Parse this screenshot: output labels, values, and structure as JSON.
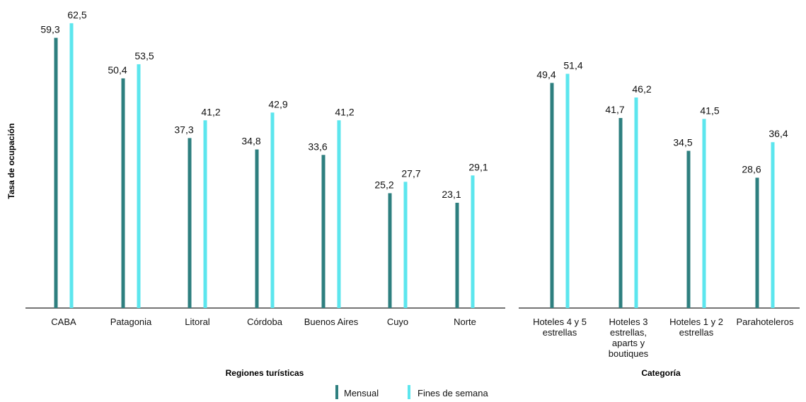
{
  "colors": {
    "mensual": "#2e7f7f",
    "fines": "#5ce6ee",
    "axis": "#222222"
  },
  "y_title": "Tasa de ocupación",
  "legend": {
    "mensual": "Mensual",
    "fines": "Fines de semana"
  },
  "chart_data": [
    {
      "type": "bar",
      "xlabel": "Regiones turísticas",
      "ylabel": "Tasa de ocupación",
      "ylim": [
        0,
        65
      ],
      "categories": [
        "CABA",
        "Patagonia",
        "Litoral",
        "Córdoba",
        "Buenos Aires",
        "Cuyo",
        "Norte"
      ],
      "series": [
        {
          "name": "Mensual",
          "values": [
            59.3,
            50.4,
            37.3,
            34.8,
            33.6,
            25.2,
            23.1
          ],
          "labels": [
            "59,3",
            "50,4",
            "37,3",
            "34,8",
            "33,6",
            "25,2",
            "23,1"
          ]
        },
        {
          "name": "Fines de semana",
          "values": [
            62.5,
            53.5,
            41.2,
            42.9,
            41.2,
            27.7,
            29.1
          ],
          "labels": [
            "62,5",
            "53,5",
            "41,2",
            "42,9",
            "41,2",
            "27,7",
            "29,1"
          ]
        }
      ]
    },
    {
      "type": "bar",
      "xlabel": "Categoría",
      "ylabel": "Tasa de ocupación",
      "ylim": [
        0,
        65
      ],
      "categories": [
        [
          "Hoteles 4 y 5",
          "estrellas"
        ],
        [
          "Hoteles 3",
          "estrellas,",
          "aparts y",
          "boutiques"
        ],
        [
          "Hoteles 1 y 2",
          "estrellas"
        ],
        [
          "Parahoteleros"
        ]
      ],
      "series": [
        {
          "name": "Mensual",
          "values": [
            49.4,
            41.7,
            34.5,
            28.6
          ],
          "labels": [
            "49,4",
            "41,7",
            "34,5",
            "28,6"
          ]
        },
        {
          "name": "Fines de semana",
          "values": [
            51.4,
            46.2,
            41.5,
            36.4
          ],
          "labels": [
            "51,4",
            "46,2",
            "41,5",
            "36,4"
          ]
        }
      ]
    }
  ]
}
